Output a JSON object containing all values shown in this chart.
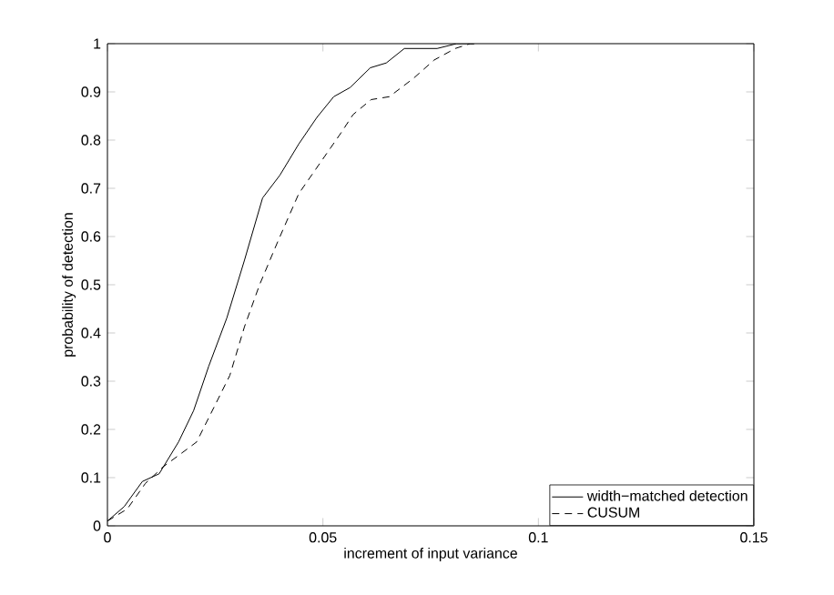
{
  "chart_data": {
    "type": "line",
    "xlabel": "increment of input variance",
    "ylabel": "probability of detection",
    "xlim": [
      0,
      0.15
    ],
    "ylim": [
      0,
      1
    ],
    "xticks": [
      0,
      0.05,
      0.1,
      0.15
    ],
    "yticks": [
      0,
      0.1,
      0.2,
      0.3,
      0.4,
      0.5,
      0.6,
      0.7,
      0.8,
      0.9,
      1
    ],
    "legend": "bottom right",
    "grid": false,
    "marker": "none",
    "series": [
      {
        "name": "width−matched detection",
        "color": "#000000",
        "line_style": "solid",
        "x": [
          0,
          0.0039,
          0.0081,
          0.012,
          0.0165,
          0.02,
          0.0235,
          0.0277,
          0.0318,
          0.036,
          0.04,
          0.0444,
          0.0486,
          0.0525,
          0.0563,
          0.061,
          0.0647,
          0.0689,
          0.0765,
          0.081,
          0.085
        ],
        "values": [
          0.01,
          0.04,
          0.092,
          0.108,
          0.174,
          0.239,
          0.331,
          0.431,
          0.551,
          0.68,
          0.727,
          0.792,
          0.847,
          0.89,
          0.909,
          0.95,
          0.96,
          0.99,
          0.99,
          1,
          1
        ]
      },
      {
        "name": "CUSUM",
        "color": "#000000",
        "line_style": "dashed",
        "x": [
          0,
          0.0046,
          0.0088,
          0.013,
          0.0165,
          0.0207,
          0.0249,
          0.0284,
          0.0318,
          0.0353,
          0.0395,
          0.0444,
          0.0493,
          0.0542,
          0.057,
          0.0612,
          0.0654,
          0.071,
          0.0758,
          0.0807,
          0.0842,
          0.086
        ],
        "values": [
          0.01,
          0.035,
          0.088,
          0.123,
          0.146,
          0.174,
          0.249,
          0.312,
          0.413,
          0.5,
          0.589,
          0.689,
          0.752,
          0.815,
          0.853,
          0.884,
          0.89,
          0.928,
          0.966,
          0.99,
          1,
          1
        ]
      }
    ]
  }
}
